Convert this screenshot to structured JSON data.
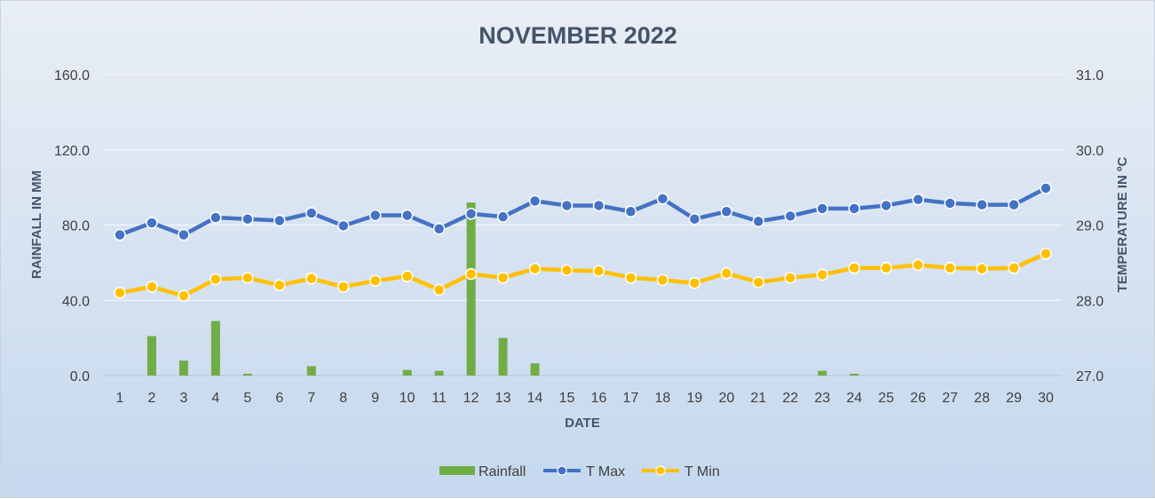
{
  "chart_data": {
    "type": "bar",
    "title": "NOVEMBER 2022",
    "xlabel": "DATE",
    "ylabel": "RAINFALL IN MM",
    "y2label": "TEMPERATURE IN ºC",
    "categories": [
      "1",
      "2",
      "3",
      "4",
      "5",
      "6",
      "7",
      "8",
      "9",
      "10",
      "11",
      "12",
      "13",
      "14",
      "15",
      "16",
      "17",
      "18",
      "19",
      "20",
      "21",
      "22",
      "23",
      "24",
      "25",
      "26",
      "27",
      "28",
      "29",
      "30"
    ],
    "ylim": [
      0,
      160
    ],
    "yticks": [
      "0.0",
      "40.0",
      "80.0",
      "120.0",
      "160.0"
    ],
    "y2lim": [
      27,
      31
    ],
    "y2ticks": [
      "27.0",
      "28.0",
      "29.0",
      "30.0",
      "31.0"
    ],
    "grid": true,
    "legend_position": "bottom",
    "series": [
      {
        "name": "Rainfall",
        "type": "bar",
        "axis": "left",
        "color": "#70ad47",
        "values": [
          0,
          21,
          8,
          29,
          1,
          0,
          5,
          0,
          0,
          3,
          2.5,
          92,
          20,
          6.5,
          0,
          0,
          0,
          0,
          0,
          0,
          0,
          0,
          2.5,
          1,
          0,
          0,
          0,
          0,
          0,
          0
        ]
      },
      {
        "name": "T Max",
        "type": "line",
        "axis": "right",
        "color": "#4472c4",
        "values": [
          28.87,
          29.03,
          28.87,
          29.1,
          29.08,
          29.06,
          29.16,
          28.99,
          29.13,
          29.13,
          28.95,
          29.15,
          29.11,
          29.32,
          29.26,
          29.26,
          29.18,
          29.35,
          29.08,
          29.18,
          29.05,
          29.12,
          29.22,
          29.22,
          29.26,
          29.34,
          29.29,
          29.27,
          29.27,
          29.49
        ]
      },
      {
        "name": "T Min",
        "type": "line",
        "axis": "right",
        "color": "#ffc000",
        "values": [
          28.1,
          28.18,
          28.06,
          28.28,
          28.3,
          28.2,
          28.29,
          28.18,
          28.26,
          28.32,
          28.14,
          28.35,
          28.3,
          28.42,
          28.4,
          28.39,
          28.3,
          28.27,
          28.23,
          28.36,
          28.24,
          28.3,
          28.34,
          28.43,
          28.43,
          28.47,
          28.43,
          28.42,
          28.43,
          28.62
        ]
      }
    ]
  }
}
